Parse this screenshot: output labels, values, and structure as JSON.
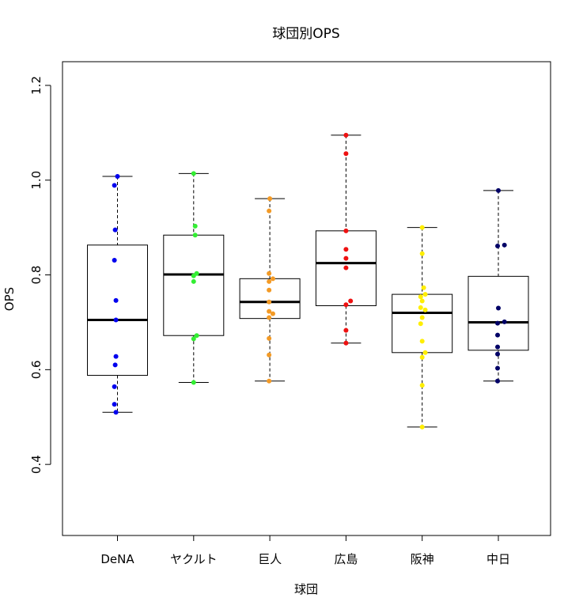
{
  "chart_data": {
    "type": "boxplot",
    "title": "球団別OPS",
    "xlabel": "球団",
    "ylabel": "OPS",
    "ylim": [
      0.25,
      1.25
    ],
    "yticks": [
      0.4,
      0.6,
      0.8,
      1.0,
      1.2
    ],
    "ytick_labels": [
      "0.4",
      "0.6",
      "0.8",
      "1.0",
      "1.2"
    ],
    "categories": [
      "DeNA",
      "ヤクルト",
      "巨人",
      "広島",
      "阪神",
      "中日"
    ],
    "boxes": [
      {
        "name": "DeNA",
        "min": 0.51,
        "q1": 0.588,
        "median": 0.705,
        "q3": 0.863,
        "max": 1.008
      },
      {
        "name": "ヤクルト",
        "min": 0.573,
        "q1": 0.672,
        "median": 0.801,
        "q3": 0.884,
        "max": 1.014
      },
      {
        "name": "巨人",
        "min": 0.576,
        "q1": 0.708,
        "median": 0.743,
        "q3": 0.792,
        "max": 0.961
      },
      {
        "name": "広島",
        "min": 0.656,
        "q1": 0.735,
        "median": 0.825,
        "q3": 0.893,
        "max": 1.095
      },
      {
        "name": "阪神",
        "min": 0.479,
        "q1": 0.636,
        "median": 0.72,
        "q3": 0.759,
        "max": 0.9
      },
      {
        "name": "中日",
        "min": 0.576,
        "q1": 0.641,
        "median": 0.7,
        "q3": 0.797,
        "max": 0.978
      }
    ],
    "series": [
      {
        "name": "DeNA",
        "color": "#0000ee",
        "points": [
          {
            "offset": 0,
            "y": 1.008
          },
          {
            "offset": -0.04,
            "y": 0.989
          },
          {
            "offset": -0.03,
            "y": 0.895
          },
          {
            "offset": -0.04,
            "y": 0.831
          },
          {
            "offset": -0.02,
            "y": 0.746
          },
          {
            "offset": -0.02,
            "y": 0.705
          },
          {
            "offset": -0.02,
            "y": 0.628
          },
          {
            "offset": -0.03,
            "y": 0.61
          },
          {
            "offset": -0.04,
            "y": 0.564
          },
          {
            "offset": -0.04,
            "y": 0.527
          },
          {
            "offset": -0.02,
            "y": 0.51
          }
        ]
      },
      {
        "name": "ヤクルト",
        "color": "#33ee33",
        "points": [
          {
            "offset": 0,
            "y": 1.014
          },
          {
            "offset": 0.02,
            "y": 0.903
          },
          {
            "offset": 0.02,
            "y": 0.884
          },
          {
            "offset": 0.04,
            "y": 0.803
          },
          {
            "offset": 0.0,
            "y": 0.798
          },
          {
            "offset": 0.0,
            "y": 0.786
          },
          {
            "offset": 0.04,
            "y": 0.672
          },
          {
            "offset": 0.0,
            "y": 0.665
          },
          {
            "offset": 0.0,
            "y": 0.573
          }
        ]
      },
      {
        "name": "巨人",
        "color": "#f39a25",
        "points": [
          {
            "offset": 0,
            "y": 0.961
          },
          {
            "offset": -0.01,
            "y": 0.935
          },
          {
            "offset": -0.01,
            "y": 0.803
          },
          {
            "offset": 0.04,
            "y": 0.792
          },
          {
            "offset": -0.01,
            "y": 0.786
          },
          {
            "offset": -0.01,
            "y": 0.768
          },
          {
            "offset": -0.01,
            "y": 0.743
          },
          {
            "offset": -0.01,
            "y": 0.723
          },
          {
            "offset": 0.04,
            "y": 0.718
          },
          {
            "offset": -0.01,
            "y": 0.71
          },
          {
            "offset": -0.01,
            "y": 0.666
          },
          {
            "offset": -0.01,
            "y": 0.631
          },
          {
            "offset": -0.01,
            "y": 0.576
          }
        ]
      },
      {
        "name": "広島",
        "color": "#ee1111",
        "points": [
          {
            "offset": 0,
            "y": 1.095
          },
          {
            "offset": 0,
            "y": 1.056
          },
          {
            "offset": 0,
            "y": 0.893
          },
          {
            "offset": 0,
            "y": 0.854
          },
          {
            "offset": 0,
            "y": 0.835
          },
          {
            "offset": 0,
            "y": 0.815
          },
          {
            "offset": 0.06,
            "y": 0.745
          },
          {
            "offset": 0,
            "y": 0.737
          },
          {
            "offset": 0,
            "y": 0.683
          },
          {
            "offset": 0,
            "y": 0.656
          }
        ]
      },
      {
        "name": "阪神",
        "color": "#ffee00",
        "points": [
          {
            "offset": 0,
            "y": 0.9
          },
          {
            "offset": 0,
            "y": 0.845
          },
          {
            "offset": 0.02,
            "y": 0.773
          },
          {
            "offset": 0.04,
            "y": 0.759
          },
          {
            "offset": -0.02,
            "y": 0.754
          },
          {
            "offset": 0.0,
            "y": 0.745
          },
          {
            "offset": -0.02,
            "y": 0.731
          },
          {
            "offset": 0.04,
            "y": 0.726
          },
          {
            "offset": 0.0,
            "y": 0.71
          },
          {
            "offset": -0.02,
            "y": 0.697
          },
          {
            "offset": 0.0,
            "y": 0.66
          },
          {
            "offset": 0.04,
            "y": 0.636
          },
          {
            "offset": 0.0,
            "y": 0.626
          },
          {
            "offset": 0.0,
            "y": 0.567
          },
          {
            "offset": 0.0,
            "y": 0.479
          }
        ]
      },
      {
        "name": "中日",
        "color": "#000066",
        "points": [
          {
            "offset": 0,
            "y": 0.978
          },
          {
            "offset": -0.01,
            "y": 0.861
          },
          {
            "offset": 0.08,
            "y": 0.863
          },
          {
            "offset": 0,
            "y": 0.73
          },
          {
            "offset": 0.08,
            "y": 0.701
          },
          {
            "offset": -0.01,
            "y": 0.698
          },
          {
            "offset": -0.01,
            "y": 0.673
          },
          {
            "offset": -0.01,
            "y": 0.648
          },
          {
            "offset": -0.01,
            "y": 0.633
          },
          {
            "offset": -0.01,
            "y": 0.603
          },
          {
            "offset": -0.01,
            "y": 0.576
          }
        ]
      }
    ]
  }
}
